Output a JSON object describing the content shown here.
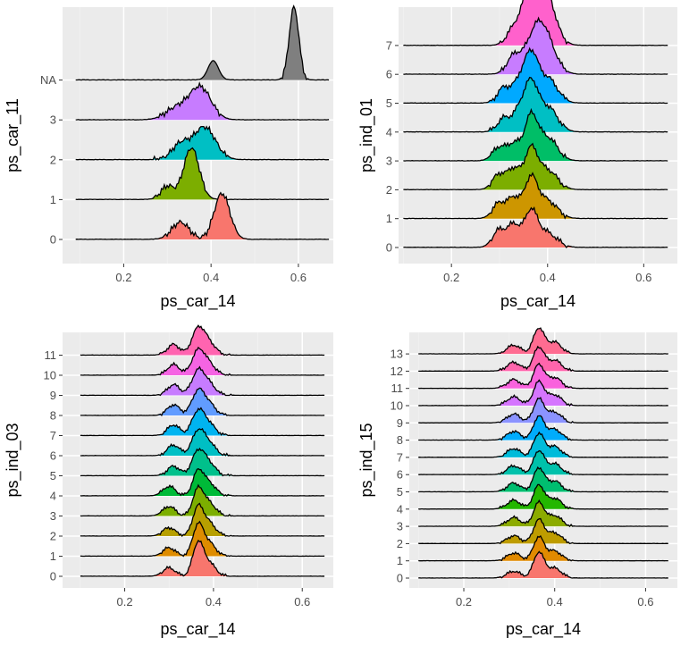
{
  "colors": {
    "panel_background": "#ebebeb",
    "grid_major": "#ffffff",
    "grid_minor": "#f2f2f2",
    "ridge_outline": "#000000",
    "axis_text": "#4d4d4d",
    "axis_title": "#000000"
  },
  "chart_data": [
    {
      "type": "ridgeline",
      "xlabel": "ps_car_14",
      "ylabel": "ps_car_11",
      "xlim": [
        0.06,
        0.68
      ],
      "x_ticks": [
        "0.2",
        "0.4",
        "0.6"
      ],
      "grid": true,
      "categories": [
        "0",
        "1",
        "2",
        "3",
        "NA"
      ],
      "colors": [
        "#F8766D",
        "#7CAE00",
        "#00BFC4",
        "#C77CFF",
        "#7F7F7F"
      ],
      "support": [
        [
          0.09,
          0.67
        ],
        [
          0.09,
          0.67
        ],
        [
          0.09,
          0.67
        ],
        [
          0.09,
          0.67
        ],
        [
          0.09,
          0.67
        ]
      ],
      "fill_range": [
        [
          0.29,
          0.46
        ],
        [
          0.27,
          0.39
        ],
        [
          0.27,
          0.44
        ],
        [
          0.28,
          0.42
        ],
        [
          0.56,
          0.62
        ]
      ],
      "peaks": [
        [
          [
            0.425,
            1.2,
            0.018
          ],
          [
            0.33,
            0.45,
            0.02
          ]
        ],
        [
          [
            0.355,
            1.35,
            0.018
          ],
          [
            0.3,
            0.35,
            0.015
          ]
        ],
        [
          [
            0.385,
            0.85,
            0.025
          ],
          [
            0.33,
            0.4,
            0.02
          ]
        ],
        [
          [
            0.375,
            0.85,
            0.025
          ],
          [
            0.32,
            0.3,
            0.025
          ]
        ],
        [
          [
            0.59,
            1.9,
            0.011
          ],
          [
            0.405,
            0.5,
            0.012
          ]
        ]
      ]
    },
    {
      "type": "ridgeline",
      "xlabel": "ps_car_14",
      "ylabel": "ps_ind_01",
      "xlim": [
        0.09,
        0.67
      ],
      "x_ticks": [
        "0.2",
        "0.4",
        "0.6"
      ],
      "grid": true,
      "categories": [
        "0",
        "1",
        "2",
        "3",
        "4",
        "5",
        "6",
        "7"
      ],
      "colors": [
        "#F8766D",
        "#CD9600",
        "#7CAE00",
        "#00BE67",
        "#00BFC4",
        "#00A9FF",
        "#C77CFF",
        "#FF61CC"
      ],
      "support": [
        [
          0.1,
          0.65
        ],
        [
          0.1,
          0.65
        ],
        [
          0.1,
          0.65
        ],
        [
          0.1,
          0.65
        ],
        [
          0.1,
          0.65
        ],
        [
          0.1,
          0.65
        ],
        [
          0.1,
          0.65
        ],
        [
          0.1,
          0.65
        ]
      ],
      "fill_range": [
        [
          0.28,
          0.44
        ],
        [
          0.28,
          0.44
        ],
        [
          0.28,
          0.44
        ],
        [
          0.28,
          0.44
        ],
        [
          0.28,
          0.44
        ],
        [
          0.28,
          0.44
        ],
        [
          0.3,
          0.44
        ],
        [
          0.3,
          0.44
        ]
      ],
      "peaks": [
        [
          [
            0.365,
            1.0,
            0.014
          ],
          [
            0.3,
            0.5,
            0.014
          ],
          [
            0.33,
            0.6,
            0.012
          ],
          [
            0.4,
            0.4,
            0.02
          ]
        ],
        [
          [
            0.365,
            1.1,
            0.014
          ],
          [
            0.3,
            0.45,
            0.014
          ],
          [
            0.33,
            0.55,
            0.012
          ],
          [
            0.4,
            0.5,
            0.02
          ]
        ],
        [
          [
            0.365,
            1.1,
            0.014
          ],
          [
            0.3,
            0.45,
            0.014
          ],
          [
            0.33,
            0.55,
            0.012
          ],
          [
            0.4,
            0.55,
            0.02
          ]
        ],
        [
          [
            0.365,
            1.2,
            0.014
          ],
          [
            0.3,
            0.4,
            0.014
          ],
          [
            0.33,
            0.45,
            0.012
          ],
          [
            0.4,
            0.65,
            0.02
          ]
        ],
        [
          [
            0.365,
            1.3,
            0.014
          ],
          [
            0.31,
            0.4,
            0.014
          ],
          [
            0.34,
            0.5,
            0.012
          ],
          [
            0.4,
            0.7,
            0.02
          ]
        ],
        [
          [
            0.365,
            1.3,
            0.014
          ],
          [
            0.31,
            0.45,
            0.014
          ],
          [
            0.34,
            0.5,
            0.012
          ],
          [
            0.4,
            0.7,
            0.02
          ]
        ],
        [
          [
            0.375,
            1.1,
            0.02
          ],
          [
            0.33,
            0.5,
            0.015
          ],
          [
            0.4,
            0.7,
            0.02
          ]
        ],
        [
          [
            0.38,
            1.4,
            0.02
          ],
          [
            0.33,
            0.45,
            0.015
          ],
          [
            0.36,
            0.8,
            0.015
          ],
          [
            0.4,
            0.8,
            0.02
          ]
        ]
      ]
    },
    {
      "type": "ridgeline",
      "xlabel": "ps_car_14",
      "ylabel": "ps_ind_03",
      "xlim": [
        0.06,
        0.67
      ],
      "x_ticks": [
        "0.2",
        "0.4",
        "0.6"
      ],
      "grid": true,
      "categories": [
        "0",
        "1",
        "2",
        "3",
        "4",
        "5",
        "6",
        "7",
        "8",
        "9",
        "10",
        "11"
      ],
      "colors": [
        "#F8766D",
        "#DE8C00",
        "#B79F00",
        "#7CAE00",
        "#00BA38",
        "#00C08B",
        "#00BFC4",
        "#00B4F0",
        "#619CFF",
        "#C77CFF",
        "#F564E3",
        "#FF64B0"
      ],
      "support": [
        [
          0.1,
          0.65
        ],
        [
          0.1,
          0.65
        ],
        [
          0.1,
          0.65
        ],
        [
          0.1,
          0.65
        ],
        [
          0.1,
          0.65
        ],
        [
          0.1,
          0.65
        ],
        [
          0.1,
          0.65
        ],
        [
          0.1,
          0.65
        ],
        [
          0.1,
          0.65
        ],
        [
          0.1,
          0.65
        ],
        [
          0.1,
          0.65
        ],
        [
          0.1,
          0.65
        ]
      ],
      "fill_range": [
        [
          0.28,
          0.44
        ],
        [
          0.28,
          0.44
        ],
        [
          0.28,
          0.44
        ],
        [
          0.28,
          0.44
        ],
        [
          0.28,
          0.44
        ],
        [
          0.28,
          0.44
        ],
        [
          0.28,
          0.44
        ],
        [
          0.28,
          0.44
        ],
        [
          0.28,
          0.44
        ],
        [
          0.28,
          0.44
        ],
        [
          0.28,
          0.44
        ],
        [
          0.28,
          0.44
        ]
      ],
      "peaks": [
        [
          [
            0.365,
            1.5,
            0.012
          ],
          [
            0.3,
            0.4,
            0.014
          ],
          [
            0.39,
            0.6,
            0.015
          ]
        ],
        [
          [
            0.365,
            1.4,
            0.012
          ],
          [
            0.3,
            0.4,
            0.014
          ],
          [
            0.39,
            0.6,
            0.015
          ]
        ],
        [
          [
            0.365,
            1.3,
            0.012
          ],
          [
            0.3,
            0.4,
            0.014
          ],
          [
            0.39,
            0.6,
            0.015
          ]
        ],
        [
          [
            0.365,
            1.2,
            0.012
          ],
          [
            0.3,
            0.45,
            0.014
          ],
          [
            0.39,
            0.6,
            0.015
          ]
        ],
        [
          [
            0.365,
            1.1,
            0.012
          ],
          [
            0.3,
            0.45,
            0.014
          ],
          [
            0.39,
            0.6,
            0.015
          ]
        ],
        [
          [
            0.365,
            1.1,
            0.014
          ],
          [
            0.31,
            0.45,
            0.014
          ],
          [
            0.39,
            0.55,
            0.015
          ]
        ],
        [
          [
            0.365,
            1.1,
            0.014
          ],
          [
            0.31,
            0.5,
            0.014
          ],
          [
            0.39,
            0.55,
            0.015
          ]
        ],
        [
          [
            0.365,
            1.1,
            0.014
          ],
          [
            0.31,
            0.5,
            0.014
          ],
          [
            0.39,
            0.5,
            0.015
          ]
        ],
        [
          [
            0.365,
            1.1,
            0.014
          ],
          [
            0.31,
            0.5,
            0.014
          ],
          [
            0.39,
            0.5,
            0.015
          ]
        ],
        [
          [
            0.365,
            1.1,
            0.014
          ],
          [
            0.31,
            0.5,
            0.014
          ],
          [
            0.39,
            0.5,
            0.015
          ]
        ],
        [
          [
            0.365,
            1.1,
            0.014
          ],
          [
            0.31,
            0.5,
            0.014
          ],
          [
            0.39,
            0.5,
            0.015
          ]
        ],
        [
          [
            0.365,
            1.2,
            0.014
          ],
          [
            0.31,
            0.5,
            0.014
          ],
          [
            0.39,
            0.55,
            0.015
          ]
        ]
      ]
    },
    {
      "type": "ridgeline",
      "xlabel": "ps_car_14",
      "ylabel": "ps_ind_15",
      "xlim": [
        0.08,
        0.67
      ],
      "x_ticks": [
        "0.2",
        "0.4",
        "0.6"
      ],
      "grid": true,
      "categories": [
        "0",
        "1",
        "2",
        "3",
        "4",
        "5",
        "6",
        "7",
        "8",
        "9",
        "10",
        "11",
        "12",
        "13"
      ],
      "colors": [
        "#F8766D",
        "#E18A00",
        "#BE9C00",
        "#8CAB00",
        "#24B700",
        "#00BE70",
        "#00C1AB",
        "#00BBDA",
        "#00ACFC",
        "#8B93FF",
        "#D575FE",
        "#F962DD",
        "#FF65AC",
        "#FF6C91"
      ],
      "support": [
        [
          0.1,
          0.65
        ],
        [
          0.1,
          0.65
        ],
        [
          0.1,
          0.65
        ],
        [
          0.1,
          0.65
        ],
        [
          0.1,
          0.65
        ],
        [
          0.1,
          0.65
        ],
        [
          0.1,
          0.65
        ],
        [
          0.1,
          0.65
        ],
        [
          0.1,
          0.65
        ],
        [
          0.1,
          0.65
        ],
        [
          0.1,
          0.65
        ],
        [
          0.1,
          0.65
        ],
        [
          0.1,
          0.65
        ],
        [
          0.1,
          0.65
        ]
      ],
      "fill_range": [
        [
          0.28,
          0.44
        ],
        [
          0.28,
          0.44
        ],
        [
          0.28,
          0.44
        ],
        [
          0.28,
          0.44
        ],
        [
          0.28,
          0.44
        ],
        [
          0.28,
          0.44
        ],
        [
          0.28,
          0.44
        ],
        [
          0.28,
          0.44
        ],
        [
          0.28,
          0.44
        ],
        [
          0.28,
          0.44
        ],
        [
          0.28,
          0.44
        ],
        [
          0.28,
          0.44
        ],
        [
          0.28,
          0.44
        ],
        [
          0.28,
          0.44
        ]
      ],
      "peaks": [
        [
          [
            0.365,
            1.3,
            0.012
          ],
          [
            0.31,
            0.35,
            0.015
          ],
          [
            0.4,
            0.5,
            0.015
          ]
        ],
        [
          [
            0.365,
            1.2,
            0.012
          ],
          [
            0.31,
            0.4,
            0.015
          ],
          [
            0.4,
            0.5,
            0.015
          ]
        ],
        [
          [
            0.365,
            1.2,
            0.012
          ],
          [
            0.31,
            0.4,
            0.015
          ],
          [
            0.4,
            0.55,
            0.015
          ]
        ],
        [
          [
            0.365,
            1.2,
            0.012
          ],
          [
            0.31,
            0.45,
            0.015
          ],
          [
            0.4,
            0.55,
            0.015
          ]
        ],
        [
          [
            0.365,
            1.2,
            0.012
          ],
          [
            0.31,
            0.45,
            0.015
          ],
          [
            0.4,
            0.55,
            0.015
          ]
        ],
        [
          [
            0.365,
            1.2,
            0.012
          ],
          [
            0.31,
            0.45,
            0.015
          ],
          [
            0.4,
            0.55,
            0.015
          ]
        ],
        [
          [
            0.365,
            1.2,
            0.012
          ],
          [
            0.31,
            0.45,
            0.015
          ],
          [
            0.4,
            0.55,
            0.015
          ]
        ],
        [
          [
            0.365,
            1.2,
            0.012
          ],
          [
            0.31,
            0.45,
            0.015
          ],
          [
            0.4,
            0.55,
            0.015
          ]
        ],
        [
          [
            0.365,
            1.2,
            0.012
          ],
          [
            0.31,
            0.45,
            0.015
          ],
          [
            0.4,
            0.55,
            0.015
          ]
        ],
        [
          [
            0.365,
            1.2,
            0.012
          ],
          [
            0.31,
            0.45,
            0.015
          ],
          [
            0.4,
            0.55,
            0.015
          ]
        ],
        [
          [
            0.365,
            1.2,
            0.012
          ],
          [
            0.31,
            0.45,
            0.015
          ],
          [
            0.4,
            0.55,
            0.015
          ]
        ],
        [
          [
            0.365,
            1.2,
            0.012
          ],
          [
            0.31,
            0.45,
            0.015
          ],
          [
            0.4,
            0.55,
            0.015
          ]
        ],
        [
          [
            0.365,
            1.2,
            0.012
          ],
          [
            0.31,
            0.45,
            0.015
          ],
          [
            0.4,
            0.55,
            0.015
          ]
        ],
        [
          [
            0.365,
            1.3,
            0.012
          ],
          [
            0.31,
            0.45,
            0.015
          ],
          [
            0.4,
            0.6,
            0.015
          ]
        ]
      ]
    }
  ]
}
